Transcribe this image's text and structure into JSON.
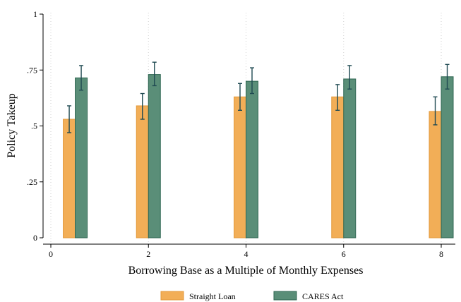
{
  "chart_data": {
    "type": "bar",
    "xlabel": "Borrowing Base as a Multiple of Monthly Expenses",
    "ylabel": "Policy Takeup",
    "xlim": [
      0,
      8
    ],
    "ylim": [
      0,
      1
    ],
    "x_ticks": [
      0,
      2,
      4,
      6,
      8
    ],
    "x_tick_labels": [
      "0",
      "2",
      "4",
      "6",
      "8"
    ],
    "y_ticks": [
      0,
      0.25,
      0.5,
      0.75,
      1
    ],
    "y_tick_labels": [
      "0",
      ".25",
      ".5",
      ".75",
      "1"
    ],
    "grid": "vertical dotted",
    "legend_position": "bottom",
    "series": [
      {
        "name": "Straight Loan",
        "color": "#f2ae57",
        "x": [
          0.5,
          2,
          4,
          6,
          8
        ],
        "values": [
          0.53,
          0.59,
          0.63,
          0.63,
          0.565
        ],
        "ci_low": [
          0.47,
          0.53,
          0.57,
          0.57,
          0.505
        ],
        "ci_high": [
          0.59,
          0.645,
          0.69,
          0.685,
          0.63
        ]
      },
      {
        "name": "CARES Act",
        "color": "#5a8e78",
        "x": [
          0.5,
          2,
          4,
          6,
          8
        ],
        "values": [
          0.715,
          0.73,
          0.7,
          0.71,
          0.72
        ],
        "ci_low": [
          0.66,
          0.68,
          0.645,
          0.665,
          0.665
        ],
        "ci_high": [
          0.77,
          0.785,
          0.76,
          0.77,
          0.775
        ]
      }
    ]
  }
}
